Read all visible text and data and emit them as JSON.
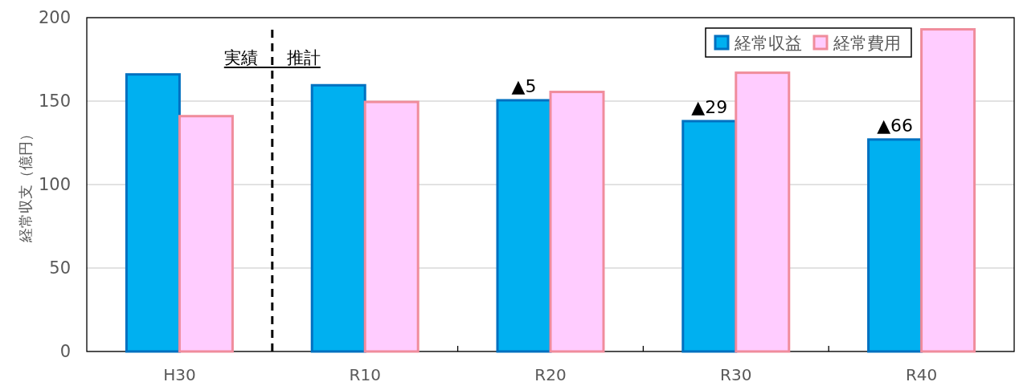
{
  "chart_data": {
    "type": "bar",
    "ylabel": "経常収支（億円）",
    "categories": [
      "H30",
      "R10",
      "R20",
      "R30",
      "R40"
    ],
    "series": [
      {
        "name": "経常収益",
        "color": "#00b0f0",
        "values": [
          166,
          159.5,
          150.5,
          138,
          127
        ]
      },
      {
        "name": "経常費用",
        "color": "#ffccff",
        "values": [
          141,
          149.5,
          155.5,
          167,
          193
        ]
      }
    ],
    "ylim": [
      0,
      200
    ],
    "yticks": [
      0,
      50,
      100,
      150,
      200
    ],
    "grid": "y",
    "legend": "top right",
    "annotations": [
      "実績",
      "推計",
      {
        "text": "▲5",
        "x": "R20",
        "y": 150.5
      },
      {
        "text": "▲29",
        "x": "R30",
        "y": 138
      },
      {
        "text": "▲66",
        "x": "R40",
        "y": 127
      }
    ]
  }
}
